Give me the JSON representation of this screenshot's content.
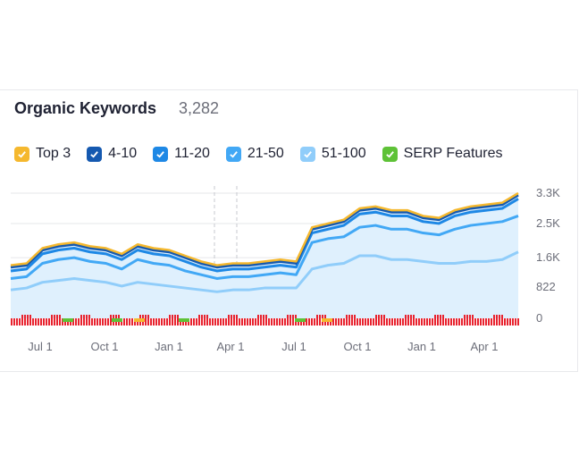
{
  "header": {
    "title": "Organic Keywords",
    "count": "3,282"
  },
  "legend": [
    {
      "label": "Top 3",
      "color": "#f5b82e"
    },
    {
      "label": "4-10",
      "color": "#1559b0"
    },
    {
      "label": "11-20",
      "color": "#1e88e5"
    },
    {
      "label": "21-50",
      "color": "#42a8f5"
    },
    {
      "label": "51-100",
      "color": "#90cdfa"
    },
    {
      "label": "SERP Features",
      "color": "#5ec237"
    }
  ],
  "chart_data": {
    "type": "area",
    "y_ticks": [
      "3.3K",
      "2.5K",
      "1.6K",
      "822",
      "0"
    ],
    "y_tick_values": [
      3300,
      2500,
      1600,
      822,
      0
    ],
    "ylim": [
      0,
      3300
    ],
    "x_tick_labels": [
      "Jul 1",
      "Oct 1",
      "Jan 1",
      "Apr 1",
      "Jul 1",
      "Oct 1",
      "Jan 1",
      "Apr 1"
    ],
    "grid": true,
    "series": [
      {
        "name": "Top 3",
        "color": "#f5b82e",
        "values": [
          1400,
          1450,
          1850,
          1950,
          2000,
          1900,
          1850,
          1700,
          1950,
          1850,
          1800,
          1650,
          1500,
          1400,
          1450,
          1450,
          1500,
          1550,
          1500,
          2400,
          2500,
          2600,
          2900,
          2950,
          2850,
          2850,
          2700,
          2650,
          2850,
          2950,
          3000,
          3050,
          3300
        ]
      },
      {
        "name": "4-10",
        "color": "#1559b0",
        "values": [
          1350,
          1400,
          1800,
          1900,
          1950,
          1850,
          1800,
          1650,
          1900,
          1800,
          1750,
          1600,
          1450,
          1350,
          1400,
          1400,
          1450,
          1500,
          1450,
          2350,
          2450,
          2550,
          2850,
          2900,
          2800,
          2800,
          2650,
          2600,
          2800,
          2900,
          2950,
          3000,
          3250
        ]
      },
      {
        "name": "11-20",
        "color": "#1e88e5",
        "values": [
          1250,
          1300,
          1700,
          1800,
          1850,
          1750,
          1700,
          1550,
          1800,
          1700,
          1650,
          1500,
          1350,
          1250,
          1300,
          1300,
          1350,
          1400,
          1350,
          2250,
          2350,
          2450,
          2750,
          2800,
          2700,
          2700,
          2550,
          2500,
          2700,
          2800,
          2850,
          2900,
          3150
        ]
      },
      {
        "name": "21-50",
        "color": "#42a8f5",
        "values": [
          1050,
          1100,
          1450,
          1550,
          1600,
          1500,
          1450,
          1300,
          1550,
          1450,
          1400,
          1250,
          1150,
          1050,
          1100,
          1100,
          1150,
          1200,
          1150,
          2000,
          2100,
          2150,
          2400,
          2450,
          2350,
          2350,
          2250,
          2200,
          2350,
          2450,
          2500,
          2550,
          2700
        ]
      },
      {
        "name": "51-100",
        "color": "#90cdfa",
        "values": [
          750,
          800,
          950,
          1000,
          1050,
          1000,
          950,
          850,
          950,
          900,
          850,
          800,
          750,
          700,
          750,
          750,
          800,
          800,
          800,
          1300,
          1400,
          1450,
          1650,
          1650,
          1550,
          1550,
          1500,
          1450,
          1450,
          1500,
          1500,
          1550,
          1750
        ]
      }
    ]
  }
}
